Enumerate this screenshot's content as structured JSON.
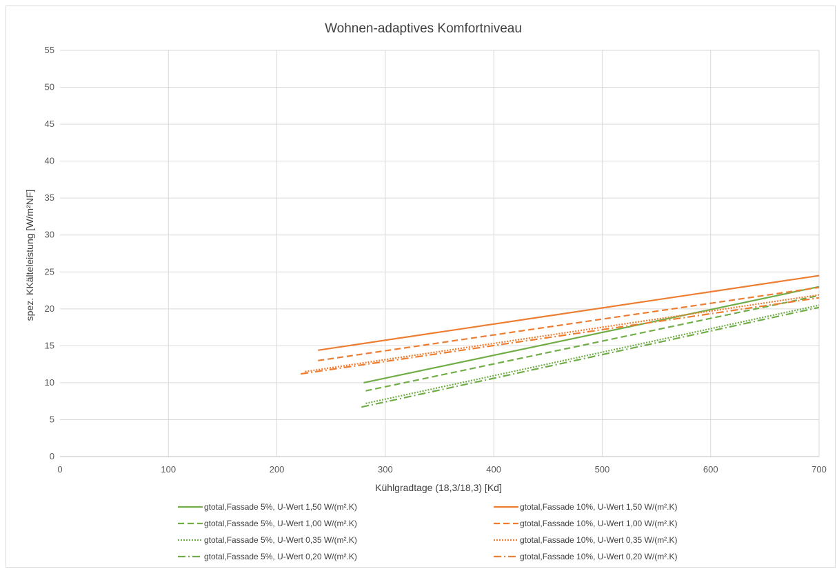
{
  "chart_data": {
    "type": "line",
    "title": "Wohnen-adaptives Komfortniveau",
    "xlabel": "Kühlgradtage (18,3/18,3) [Kd]",
    "ylabel": "spez. KKälteleistung [W/m²NF]",
    "xlim": [
      0,
      700
    ],
    "ylim": [
      0,
      55
    ],
    "x_ticks": [
      "0",
      "100",
      "200",
      "300",
      "400",
      "500",
      "600",
      "700"
    ],
    "y_ticks": [
      "0",
      "5",
      "10",
      "15",
      "20",
      "25",
      "30",
      "35",
      "40",
      "45",
      "50",
      "55"
    ],
    "grid": "vertical and horizontal",
    "legend_position": "bottom",
    "colors": {
      "green": "#70ad47",
      "orange": "#ed7d31",
      "grid": "#d9d9d9",
      "axis": "#bfbfbf"
    },
    "series": [
      {
        "name": "gtotal,Fassade 5%, U-Wert 1,50 W/(m².K)",
        "color": "#70ad47",
        "dash": "solid",
        "x": [
          280,
          700
        ],
        "y": [
          10.0,
          23.0
        ]
      },
      {
        "name": "gtotal,Fassade 5%, U-Wert 1,00 W/(m².K)",
        "color": "#70ad47",
        "dash": "dash",
        "x": [
          282,
          700
        ],
        "y": [
          8.9,
          21.8
        ]
      },
      {
        "name": "gtotal,Fassade 5%, U-Wert 0,35 W/(m².K)",
        "color": "#70ad47",
        "dash": "dot",
        "x": [
          282,
          700
        ],
        "y": [
          7.2,
          20.5
        ]
      },
      {
        "name": "gtotal,Fassade 5%, U-Wert 0,20 W/(m².K)",
        "color": "#70ad47",
        "dash": "dashdot",
        "x": [
          278,
          700
        ],
        "y": [
          6.7,
          20.2
        ]
      },
      {
        "name": "gtotal,Fassade 10%, U-Wert 1,50 W/(m².K)",
        "color": "#ed7d31",
        "dash": "solid",
        "x": [
          238,
          700
        ],
        "y": [
          14.4,
          24.5
        ]
      },
      {
        "name": "gtotal,Fassade 10%, U-Wert 1,00 W/(m².K)",
        "color": "#ed7d31",
        "dash": "dash",
        "x": [
          238,
          700
        ],
        "y": [
          13.0,
          22.9
        ]
      },
      {
        "name": "gtotal,Fassade 10%, U-Wert 0,35 W/(m².K)",
        "color": "#ed7d31",
        "dash": "dot",
        "x": [
          226,
          700
        ],
        "y": [
          11.5,
          21.9
        ]
      },
      {
        "name": "gtotal,Fassade 10%, U-Wert 0,20 W/(m².K)",
        "color": "#ed7d31",
        "dash": "dashdot",
        "x": [
          222,
          700
        ],
        "y": [
          11.2,
          21.5
        ]
      }
    ]
  }
}
